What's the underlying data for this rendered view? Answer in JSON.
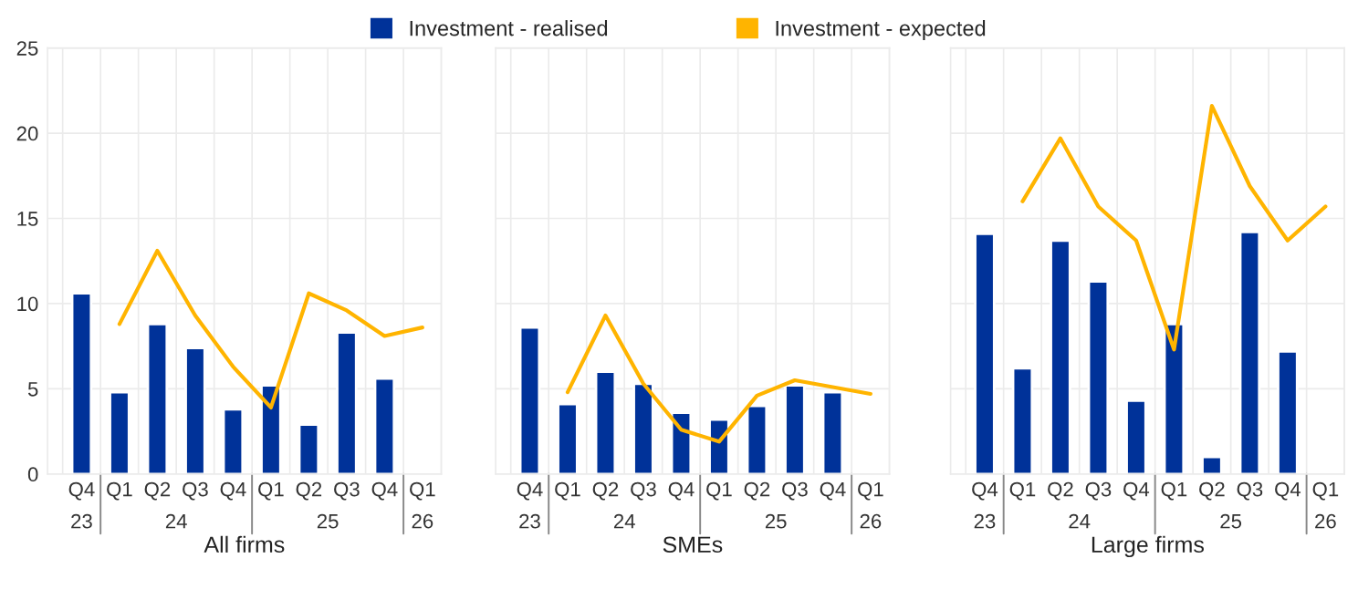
{
  "chart_data": [
    {
      "type": "bar",
      "xlabel": "All firms",
      "legend": "top",
      "grid": true,
      "ylim": [
        0,
        25
      ],
      "yticks": [
        0,
        5,
        10,
        15,
        20,
        25
      ],
      "categories": [
        "Q4",
        "Q1",
        "Q2",
        "Q3",
        "Q4",
        "Q1",
        "Q2",
        "Q3",
        "Q4",
        "Q1"
      ],
      "annotations": [
        "23",
        "24",
        "25",
        "26"
      ],
      "series": [
        {
          "name": "Investment - realised",
          "color": "#003299",
          "values": [
            10.6,
            4.8,
            8.8,
            7.4,
            3.8,
            5.2,
            2.9,
            8.3,
            5.6,
            null
          ]
        },
        {
          "name": "Investment - expected",
          "color": "#ffb400",
          "type": "line",
          "values": [
            null,
            8.8,
            13.1,
            9.3,
            6.3,
            3.9,
            10.6,
            9.6,
            8.1,
            8.6
          ]
        }
      ]
    },
    {
      "type": "bar",
      "xlabel": "SMEs",
      "grid": true,
      "ylim": [
        0,
        25
      ],
      "tick_labels": "x",
      "categories": [
        "Q4",
        "Q1",
        "Q2",
        "Q3",
        "Q4",
        "Q1",
        "Q2",
        "Q3",
        "Q4",
        "Q1"
      ],
      "annotations": [
        "23",
        "24",
        "25",
        "26"
      ],
      "series": [
        {
          "color": "#003299",
          "values": [
            8.6,
            4.1,
            6.0,
            5.3,
            3.6,
            3.2,
            4.0,
            5.2,
            4.8,
            null
          ]
        },
        {
          "color": "#ffb400",
          "type": "line",
          "values": [
            null,
            4.8,
            9.3,
            5.3,
            2.6,
            1.9,
            4.6,
            5.5,
            5.1,
            4.7
          ]
        }
      ]
    },
    {
      "type": "bar",
      "xlabel": "Large firms",
      "grid": true,
      "ylim": [
        0,
        25
      ],
      "tick_labels": "x",
      "categories": [
        "Q4",
        "Q1",
        "Q2",
        "Q3",
        "Q4",
        "Q1",
        "Q2",
        "Q3",
        "Q4",
        "Q1"
      ],
      "annotations": [
        "23",
        "24",
        "25",
        "26"
      ],
      "series": [
        {
          "color": "#003299",
          "values": [
            14.1,
            6.2,
            13.7,
            11.3,
            4.3,
            8.8,
            1.0,
            14.2,
            7.2,
            null
          ]
        },
        {
          "color": "#ffb400",
          "type": "line",
          "values": [
            null,
            16.0,
            19.7,
            15.7,
            13.7,
            7.3,
            21.6,
            16.9,
            13.7,
            15.7
          ]
        }
      ]
    }
  ]
}
